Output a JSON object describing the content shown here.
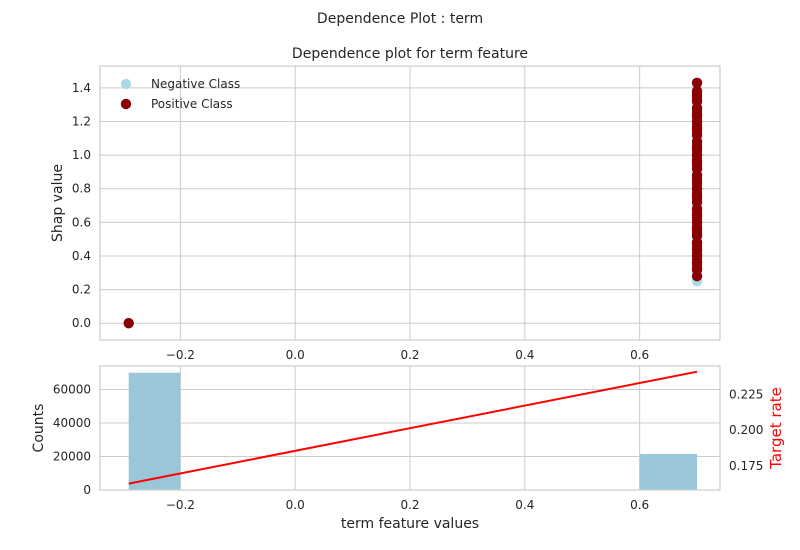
{
  "figure": {
    "suptitle": "Dependence Plot : term"
  },
  "chart_data": [
    {
      "type": "scatter",
      "title": "Dependence plot for term feature",
      "xlabel": "",
      "ylabel": "Shap value",
      "xlim": [
        -0.34,
        0.74
      ],
      "ylim": [
        -0.1,
        1.53
      ],
      "xticks": [
        -0.2,
        0.0,
        0.2,
        0.4,
        0.6
      ],
      "xtick_labels": [
        "−0.2",
        "0.0",
        "0.2",
        "0.4",
        "0.6"
      ],
      "yticks": [
        0.0,
        0.2,
        0.4,
        0.6,
        0.8,
        1.0,
        1.2,
        1.4
      ],
      "ytick_labels": [
        "0.0",
        "0.2",
        "0.4",
        "0.6",
        "0.8",
        "1.0",
        "1.2",
        "1.4"
      ],
      "grid": true,
      "legend": "top-left",
      "series": [
        {
          "name": "Negative Class",
          "color": "#add8e6",
          "points": [
            [
              -0.29,
              0.0
            ],
            [
              0.7,
              0.25
            ],
            [
              0.7,
              0.3
            ],
            [
              0.7,
              0.4
            ],
            [
              0.7,
              0.5
            ],
            [
              0.7,
              0.6
            ],
            [
              0.7,
              0.7
            ],
            [
              0.7,
              0.8
            ],
            [
              0.7,
              0.9
            ],
            [
              0.7,
              1.0
            ],
            [
              0.7,
              1.1
            ],
            [
              0.7,
              1.2
            ],
            [
              0.7,
              1.3
            ],
            [
              0.7,
              1.4
            ]
          ]
        },
        {
          "name": "Positive Class",
          "color": "#8b0000",
          "points": [
            [
              -0.29,
              0.0
            ],
            [
              0.7,
              0.28
            ],
            [
              0.7,
              0.32
            ],
            [
              0.7,
              0.36
            ],
            [
              0.7,
              0.4
            ],
            [
              0.7,
              0.44
            ],
            [
              0.7,
              0.48
            ],
            [
              0.7,
              0.52
            ],
            [
              0.7,
              0.56
            ],
            [
              0.7,
              0.6
            ],
            [
              0.7,
              0.64
            ],
            [
              0.7,
              0.68
            ],
            [
              0.7,
              0.72
            ],
            [
              0.7,
              0.76
            ],
            [
              0.7,
              0.8
            ],
            [
              0.7,
              0.84
            ],
            [
              0.7,
              0.88
            ],
            [
              0.7,
              0.92
            ],
            [
              0.7,
              0.96
            ],
            [
              0.7,
              1.0
            ],
            [
              0.7,
              1.04
            ],
            [
              0.7,
              1.08
            ],
            [
              0.7,
              1.12
            ],
            [
              0.7,
              1.16
            ],
            [
              0.7,
              1.2
            ],
            [
              0.7,
              1.24
            ],
            [
              0.7,
              1.28
            ],
            [
              0.7,
              1.32
            ],
            [
              0.7,
              1.38
            ],
            [
              0.7,
              1.43
            ]
          ]
        }
      ]
    },
    {
      "type": "bar",
      "title": "",
      "xlabel": "term feature values",
      "ylabel": "Counts",
      "y2label": "Target rate",
      "xlim": [
        -0.34,
        0.74
      ],
      "ylim": [
        0,
        74000
      ],
      "y2lim": [
        0.158,
        0.245
      ],
      "xticks": [
        -0.2,
        0.0,
        0.2,
        0.4,
        0.6
      ],
      "xtick_labels": [
        "−0.2",
        "0.0",
        "0.2",
        "0.4",
        "0.6"
      ],
      "yticks": [
        0,
        20000,
        40000,
        60000
      ],
      "ytick_labels": [
        "0",
        "20000",
        "40000",
        "60000"
      ],
      "y2ticks": [
        0.175,
        0.2,
        0.225
      ],
      "y2tick_labels": [
        "0.175",
        "0.200",
        "0.225"
      ],
      "grid": true,
      "bar_color": "#9ac6da",
      "line_color": "#ff0000",
      "y2label_color": "#ff0000",
      "bars": [
        {
          "x0": -0.29,
          "x1": -0.2,
          "count": 70000
        },
        {
          "x0": 0.6,
          "x1": 0.7,
          "count": 21500
        }
      ],
      "target_rate_line": {
        "x": [
          -0.29,
          0.7
        ],
        "y": [
          0.1625,
          0.241
        ]
      }
    }
  ]
}
